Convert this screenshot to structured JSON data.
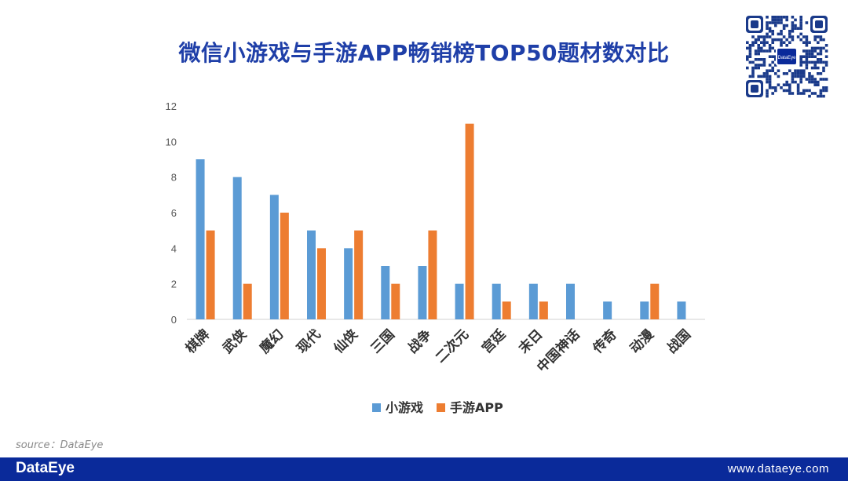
{
  "header": {
    "title": "微信小游戏与手游APP畅销榜TOP50题材数对比"
  },
  "qr": {
    "badge": "DataEye"
  },
  "footer": {
    "source": "source：DataEye",
    "logo": "DataEye",
    "url": "www.dataeye.com"
  },
  "colors": {
    "series1": "#5b9bd5",
    "series2": "#ed7d31",
    "title": "#1f3fa8",
    "footer": "#0a2a9a"
  },
  "chart_data": {
    "type": "bar",
    "title": "微信小游戏与手游APP畅销榜TOP50题材数对比",
    "xlabel": "",
    "ylabel": "",
    "ylim": [
      0,
      12
    ],
    "yticks": [
      "0",
      "2",
      "4",
      "6",
      "8",
      "10",
      "12"
    ],
    "categories": [
      "棋牌",
      "武侠",
      "魔幻",
      "现代",
      "仙侠",
      "三国",
      "战争",
      "二次元",
      "宫廷",
      "末日",
      "中国神话",
      "传奇",
      "动漫",
      "战国"
    ],
    "series": [
      {
        "name": "小游戏",
        "values": [
          9,
          8,
          7,
          5,
          4,
          3,
          3,
          2,
          2,
          2,
          2,
          1,
          1,
          1
        ]
      },
      {
        "name": "手游APP",
        "values": [
          5,
          2,
          6,
          4,
          5,
          2,
          5,
          11,
          1,
          1,
          0,
          0,
          2,
          0
        ]
      }
    ],
    "legend": "bottom-center"
  }
}
